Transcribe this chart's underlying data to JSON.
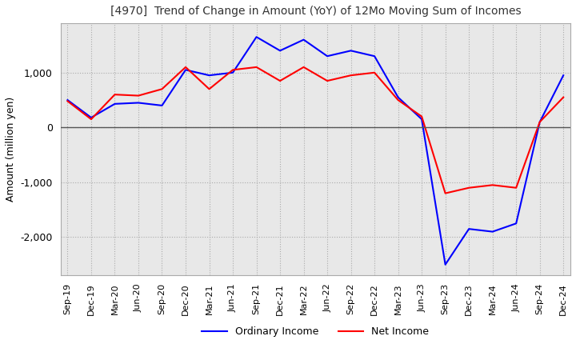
{
  "title": "[4970]  Trend of Change in Amount (YoY) of 12Mo Moving Sum of Incomes",
  "ylabel": "Amount (million yen)",
  "xlabels": [
    "Sep-19",
    "Dec-19",
    "Mar-20",
    "Jun-20",
    "Sep-20",
    "Dec-20",
    "Mar-21",
    "Jun-21",
    "Sep-21",
    "Dec-21",
    "Mar-22",
    "Jun-22",
    "Sep-22",
    "Dec-22",
    "Mar-23",
    "Jun-23",
    "Sep-23",
    "Dec-23",
    "Mar-24",
    "Jun-24",
    "Sep-24",
    "Dec-24"
  ],
  "ordinary_income": [
    500,
    180,
    430,
    450,
    400,
    1050,
    950,
    1000,
    1650,
    1400,
    1600,
    1300,
    1400,
    1300,
    550,
    150,
    -2500,
    -1850,
    -1900,
    -1750,
    100,
    950
  ],
  "net_income": [
    480,
    150,
    600,
    580,
    700,
    1100,
    700,
    1050,
    1100,
    850,
    1100,
    850,
    950,
    1000,
    500,
    200,
    -1200,
    -1100,
    -1050,
    -1100,
    100,
    550
  ],
  "ordinary_color": "#0000ff",
  "net_color": "#ff0000",
  "ylim": [
    -2700,
    1900
  ],
  "yticks": [
    -2000,
    -1000,
    0,
    1000
  ],
  "grid_color": "#aaaaaa",
  "plot_bg_color": "#e8e8e8",
  "background_color": "#ffffff",
  "legend_labels": [
    "Ordinary Income",
    "Net Income"
  ]
}
